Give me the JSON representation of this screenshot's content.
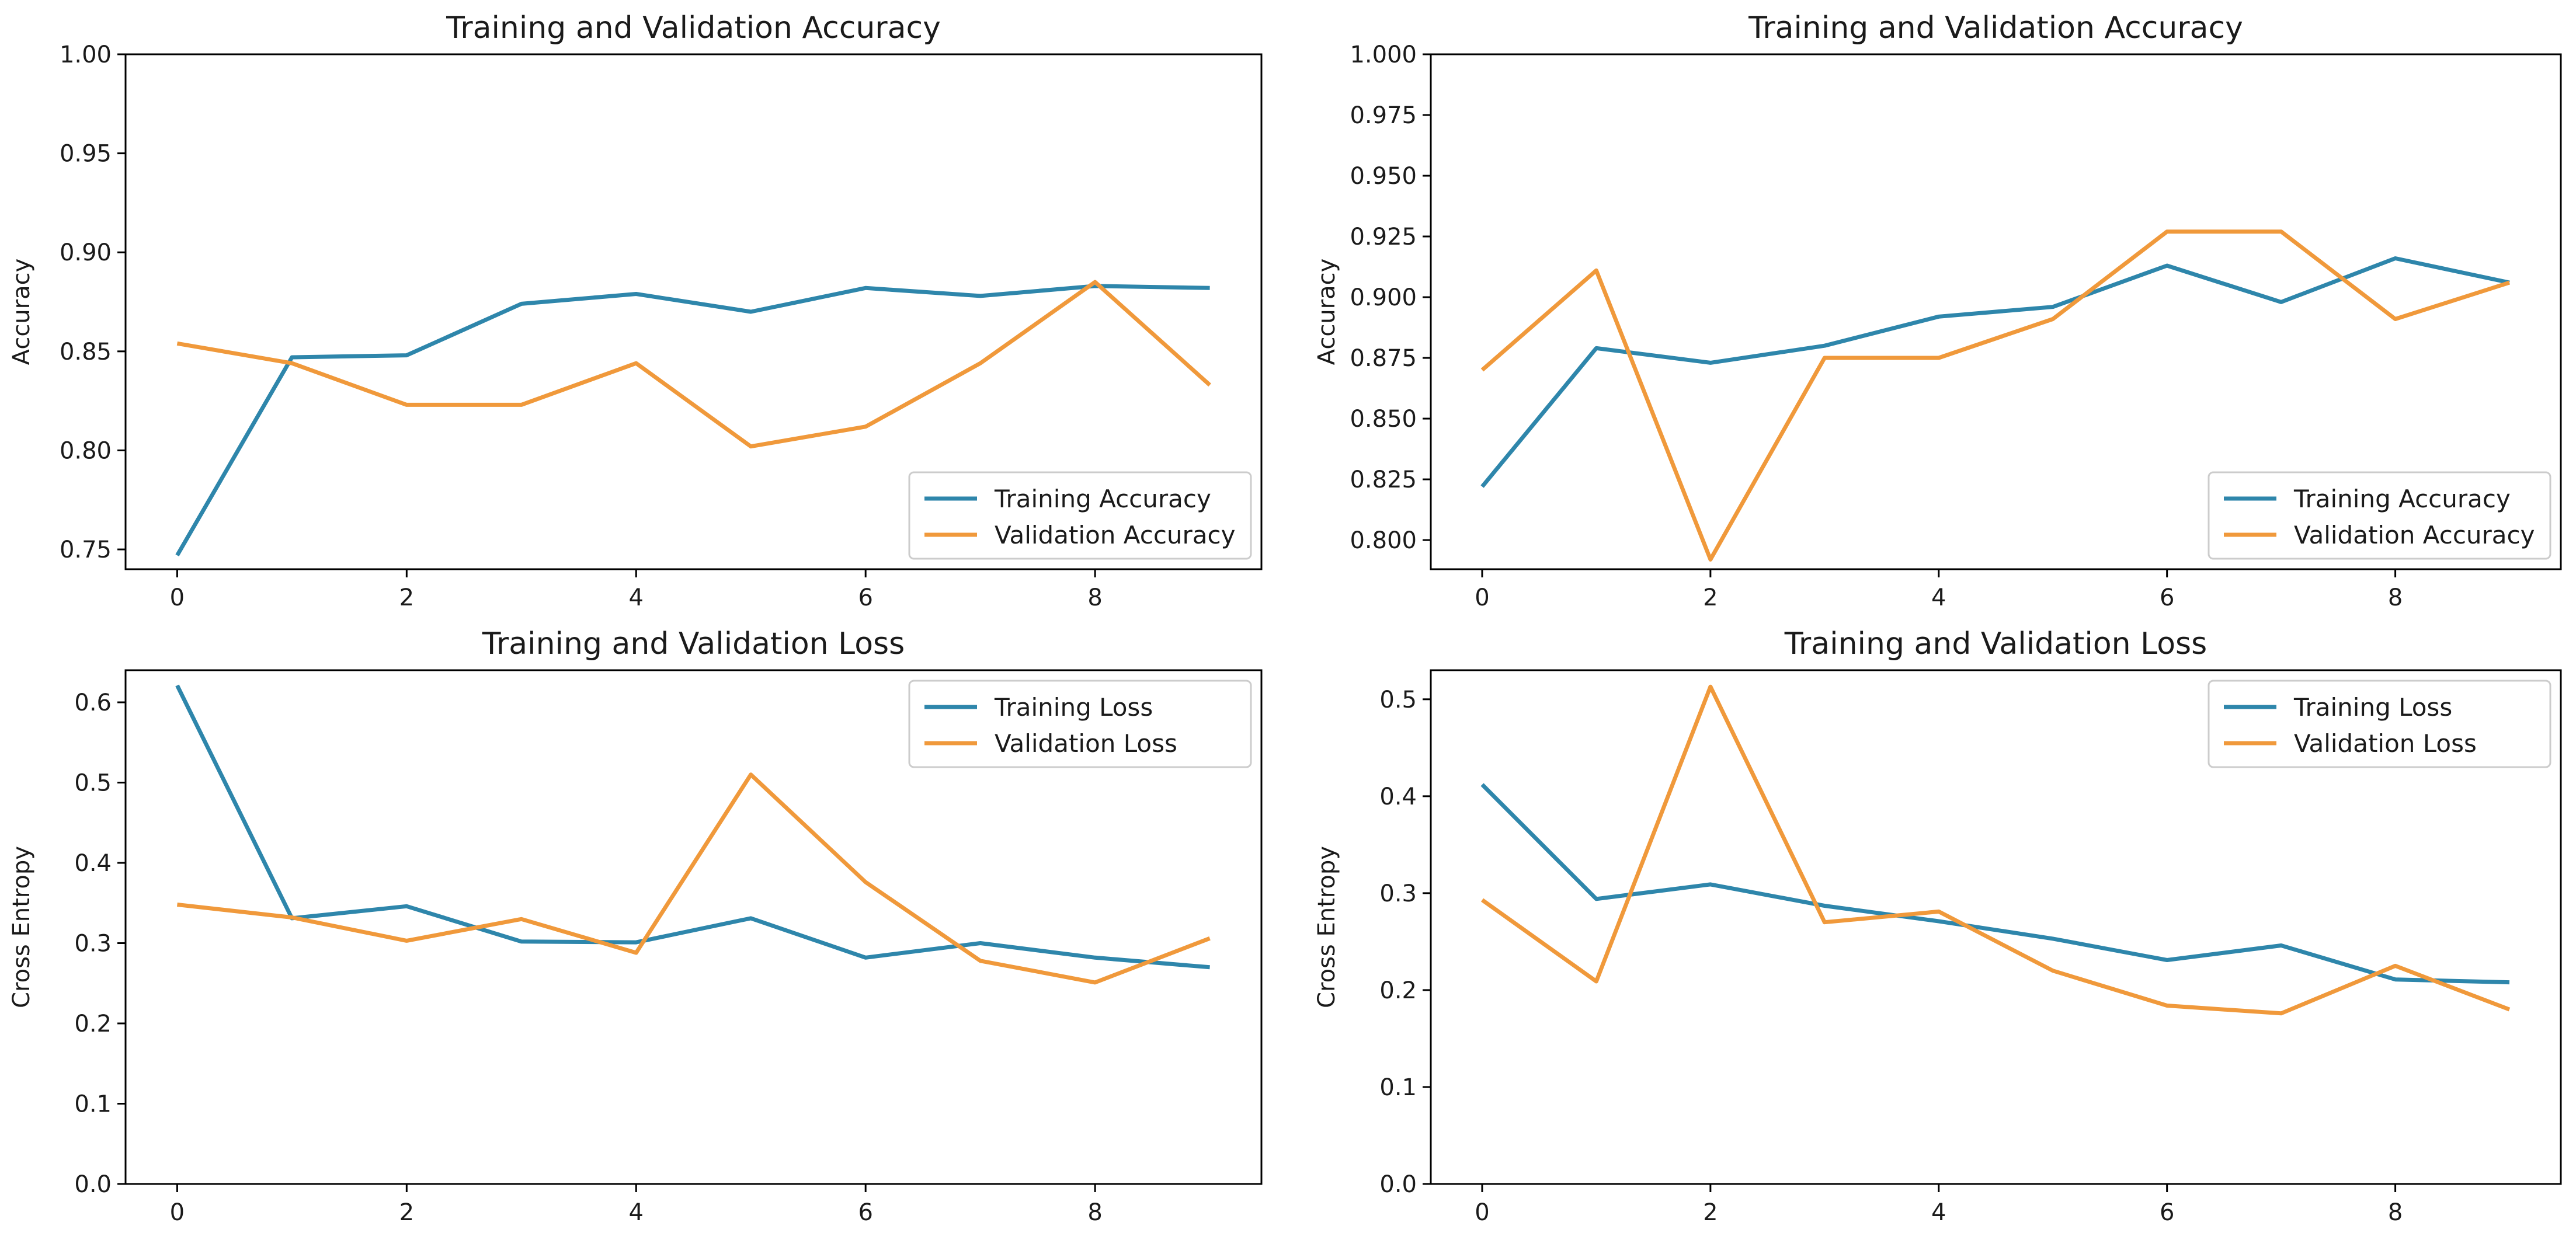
{
  "colors": {
    "training": "#2e86ab",
    "validation": "#f0993b",
    "axis": "#000000",
    "legend_border": "#cccccc"
  },
  "chart_data": [
    {
      "type": "line",
      "title": "Training and Validation Accuracy",
      "xlabel": "",
      "ylabel": "Accuracy",
      "x": [
        0,
        1,
        2,
        3,
        4,
        5,
        6,
        7,
        8,
        9
      ],
      "xlim": [
        -0.45,
        9.45
      ],
      "ylim": [
        0.74,
        1.0
      ],
      "xticks": [
        0,
        2,
        4,
        6,
        8
      ],
      "yticks": [
        0.75,
        0.8,
        0.85,
        0.9,
        0.95,
        1.0
      ],
      "ytick_labels": [
        "0.75",
        "0.80",
        "0.85",
        "0.90",
        "0.95",
        "1.00"
      ],
      "legend_loc": "lower-right",
      "grid": false,
      "series": [
        {
          "name": "Training Accuracy",
          "color_key": "training",
          "values": [
            0.747,
            0.847,
            0.848,
            0.874,
            0.879,
            0.87,
            0.882,
            0.878,
            0.883,
            0.882
          ]
        },
        {
          "name": "Validation Accuracy",
          "color_key": "validation",
          "values": [
            0.854,
            0.844,
            0.823,
            0.823,
            0.844,
            0.802,
            0.812,
            0.844,
            0.885,
            0.833
          ]
        }
      ]
    },
    {
      "type": "line",
      "title": "Training and Validation Accuracy",
      "xlabel": "",
      "ylabel": "Accuracy",
      "x": [
        0,
        1,
        2,
        3,
        4,
        5,
        6,
        7,
        8,
        9
      ],
      "xlim": [
        -0.45,
        9.45
      ],
      "ylim": [
        0.788,
        1.0
      ],
      "xticks": [
        0,
        2,
        4,
        6,
        8
      ],
      "yticks": [
        0.8,
        0.825,
        0.85,
        0.875,
        0.9,
        0.925,
        0.95,
        0.975,
        1.0
      ],
      "ytick_labels": [
        "0.800",
        "0.825",
        "0.850",
        "0.875",
        "0.900",
        "0.925",
        "0.950",
        "0.975",
        "1.000"
      ],
      "legend_loc": "lower-right",
      "grid": false,
      "series": [
        {
          "name": "Training Accuracy",
          "color_key": "training",
          "values": [
            0.822,
            0.879,
            0.873,
            0.88,
            0.892,
            0.896,
            0.913,
            0.898,
            0.916,
            0.906
          ]
        },
        {
          "name": "Validation Accuracy",
          "color_key": "validation",
          "values": [
            0.87,
            0.911,
            0.792,
            0.875,
            0.875,
            0.891,
            0.927,
            0.927,
            0.891,
            0.906
          ]
        }
      ]
    },
    {
      "type": "line",
      "title": "Training and Validation Loss",
      "xlabel": "",
      "ylabel": "Cross Entropy",
      "x": [
        0,
        1,
        2,
        3,
        4,
        5,
        6,
        7,
        8,
        9
      ],
      "xlim": [
        -0.45,
        9.45
      ],
      "ylim": [
        0.0,
        0.64
      ],
      "xticks": [
        0,
        2,
        4,
        6,
        8
      ],
      "yticks": [
        0.0,
        0.1,
        0.2,
        0.3,
        0.4,
        0.5,
        0.6
      ],
      "ytick_labels": [
        "0.0",
        "0.1",
        "0.2",
        "0.3",
        "0.4",
        "0.5",
        "0.6"
      ],
      "legend_loc": "upper-right",
      "grid": false,
      "series": [
        {
          "name": "Training Loss",
          "color_key": "training",
          "values": [
            0.621,
            0.331,
            0.346,
            0.302,
            0.301,
            0.331,
            0.282,
            0.3,
            0.282,
            0.27
          ]
        },
        {
          "name": "Validation Loss",
          "color_key": "validation",
          "values": [
            0.348,
            0.332,
            0.303,
            0.33,
            0.288,
            0.51,
            0.376,
            0.278,
            0.251,
            0.306
          ]
        }
      ]
    },
    {
      "type": "line",
      "title": "Training and Validation Loss",
      "xlabel": "",
      "ylabel": "Cross Entropy",
      "x": [
        0,
        1,
        2,
        3,
        4,
        5,
        6,
        7,
        8,
        9
      ],
      "xlim": [
        -0.45,
        9.45
      ],
      "ylim": [
        0.0,
        0.53
      ],
      "xticks": [
        0,
        2,
        4,
        6,
        8
      ],
      "yticks": [
        0.0,
        0.1,
        0.2,
        0.3,
        0.4,
        0.5
      ],
      "ytick_labels": [
        "0.0",
        "0.1",
        "0.2",
        "0.3",
        "0.4",
        "0.5"
      ],
      "legend_loc": "upper-right",
      "grid": false,
      "series": [
        {
          "name": "Training Loss",
          "color_key": "training",
          "values": [
            0.412,
            0.294,
            0.309,
            0.287,
            0.271,
            0.253,
            0.231,
            0.246,
            0.211,
            0.208
          ]
        },
        {
          "name": "Validation Loss",
          "color_key": "validation",
          "values": [
            0.293,
            0.209,
            0.513,
            0.27,
            0.281,
            0.22,
            0.184,
            0.176,
            0.225,
            0.18
          ]
        }
      ]
    }
  ]
}
